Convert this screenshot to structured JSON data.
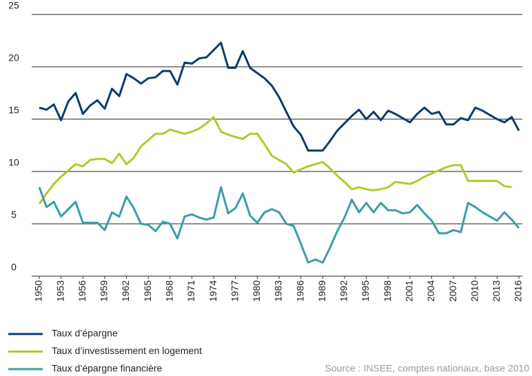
{
  "chart_data": {
    "type": "line",
    "x": [
      1950,
      1951,
      1952,
      1953,
      1954,
      1955,
      1956,
      1957,
      1958,
      1959,
      1960,
      1961,
      1962,
      1963,
      1964,
      1965,
      1966,
      1967,
      1968,
      1969,
      1970,
      1971,
      1972,
      1973,
      1974,
      1975,
      1976,
      1977,
      1978,
      1979,
      1980,
      1981,
      1982,
      1983,
      1984,
      1985,
      1986,
      1987,
      1988,
      1989,
      1990,
      1991,
      1992,
      1993,
      1994,
      1995,
      1996,
      1997,
      1998,
      1999,
      2000,
      2001,
      2002,
      2003,
      2004,
      2005,
      2006,
      2007,
      2008,
      2009,
      2010,
      2011,
      2012,
      2013,
      2014,
      2015,
      2016
    ],
    "xlim": [
      1950,
      2016
    ],
    "xticks": [
      1950,
      1953,
      1956,
      1959,
      1962,
      1965,
      1968,
      1971,
      1974,
      1977,
      1980,
      1983,
      1986,
      1989,
      1992,
      1995,
      1998,
      2001,
      2004,
      2007,
      2010,
      2013,
      2016
    ],
    "ylim": [
      0,
      25
    ],
    "yticks": [
      0,
      5,
      10,
      15,
      20,
      25
    ],
    "grid": true,
    "series": [
      {
        "name": "Taux d’épargne",
        "color": "#0d3a6e",
        "values": [
          16.1,
          15.9,
          16.4,
          14.9,
          16.7,
          17.5,
          15.5,
          16.3,
          16.8,
          16.0,
          17.9,
          17.2,
          19.3,
          18.9,
          18.4,
          18.9,
          19.0,
          19.6,
          19.6,
          18.3,
          20.4,
          20.3,
          20.8,
          20.9,
          21.6,
          22.3,
          19.9,
          19.9,
          21.5,
          19.9,
          19.4,
          18.9,
          18.2,
          17.1,
          15.7,
          14.3,
          13.5,
          12.0,
          12.0,
          12.0,
          12.9,
          13.9,
          14.6,
          15.3,
          15.9,
          15.0,
          15.7,
          14.9,
          15.8,
          15.5,
          15.1,
          14.7,
          15.5,
          16.1,
          15.5,
          15.7,
          14.5,
          14.5,
          15.1,
          14.9,
          16.1,
          15.8,
          15.4,
          15.0,
          14.7,
          15.2,
          13.9
        ]
      },
      {
        "name": "Taux d’investissement en logement",
        "color": "#b5c72a",
        "values": [
          6.9,
          7.9,
          8.8,
          9.5,
          10.1,
          10.7,
          10.5,
          11.1,
          11.2,
          11.2,
          10.8,
          11.7,
          10.7,
          11.3,
          12.4,
          13.0,
          13.6,
          13.6,
          14.0,
          13.8,
          13.6,
          13.8,
          14.1,
          14.6,
          15.2,
          13.8,
          13.5,
          13.3,
          13.1,
          13.6,
          13.6,
          12.6,
          11.5,
          11.1,
          10.7,
          9.9,
          10.2,
          10.5,
          10.7,
          10.9,
          10.3,
          9.6,
          9.0,
          8.3,
          8.5,
          8.3,
          8.2,
          8.3,
          8.5,
          9.0,
          8.9,
          8.8,
          9.1,
          9.5,
          9.8,
          10.1,
          10.4,
          10.6,
          10.6,
          9.1,
          9.1,
          9.1,
          9.1,
          9.1,
          8.6,
          8.5,
          null
        ]
      },
      {
        "name": "Taux d’épargne financière",
        "color": "#3a9ea5",
        "values": [
          8.5,
          6.6,
          7.1,
          5.7,
          6.4,
          7.1,
          5.1,
          5.1,
          5.1,
          4.4,
          6.1,
          5.7,
          7.6,
          6.5,
          5.0,
          4.9,
          4.3,
          5.2,
          5.0,
          3.6,
          5.7,
          5.9,
          5.6,
          5.4,
          5.6,
          8.5,
          6.0,
          6.5,
          7.9,
          5.8,
          5.1,
          6.1,
          6.4,
          6.1,
          5.0,
          4.8,
          3.1,
          1.3,
          1.6,
          1.3,
          2.7,
          4.3,
          5.6,
          7.3,
          6.1,
          7.0,
          6.1,
          7.0,
          6.3,
          6.3,
          6.0,
          6.1,
          6.8,
          6.0,
          5.3,
          4.1,
          4.1,
          4.4,
          4.2,
          7.0,
          6.6,
          6.1,
          5.7,
          5.3,
          6.1,
          5.4,
          4.6
        ]
      }
    ],
    "source": "Source : INSEE, comptes nationaux, base 2010"
  }
}
